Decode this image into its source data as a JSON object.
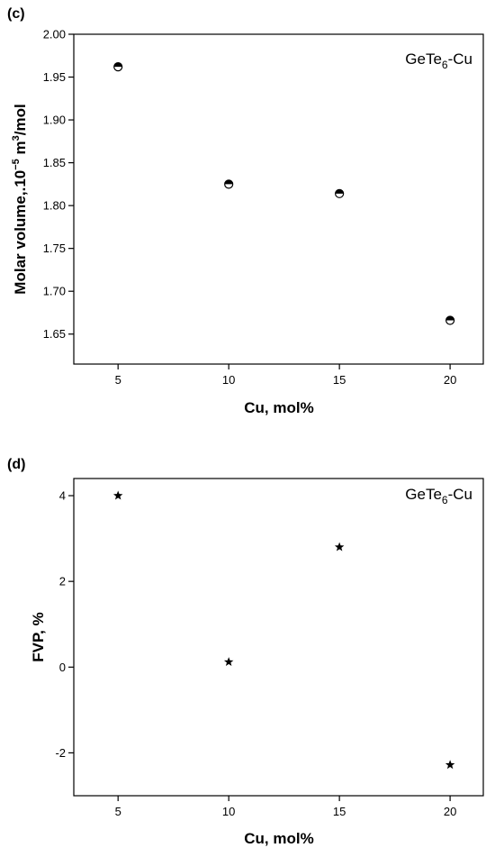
{
  "chart_data": [
    {
      "panel_label": "(c)",
      "type": "scatter",
      "marker": "half-filled-circle",
      "annotation": {
        "main": "GeTe",
        "sub": "6",
        "rest": "-Cu"
      },
      "xlabel": "Cu, mol%",
      "ylabel": {
        "main": "Molar volume,.10",
        "sup1": "−5",
        "mid": " m",
        "sup2": "3",
        "end": "/mol"
      },
      "xlim": [
        3,
        21.5
      ],
      "ylim": [
        1.615,
        2.0
      ],
      "xticks": [
        5,
        10,
        15,
        20
      ],
      "xtick_labels": [
        "5",
        "10",
        "15",
        "20"
      ],
      "yticks": [
        1.65,
        1.7,
        1.75,
        1.8,
        1.85,
        1.9,
        1.95,
        2.0
      ],
      "ytick_labels": [
        "1.65",
        "1.70",
        "1.75",
        "1.80",
        "1.85",
        "1.90",
        "1.95",
        "2.00"
      ],
      "points": [
        {
          "x": 5,
          "y": 1.962
        },
        {
          "x": 10,
          "y": 1.825
        },
        {
          "x": 15,
          "y": 1.814
        },
        {
          "x": 20,
          "y": 1.666
        }
      ]
    },
    {
      "panel_label": "(d)",
      "type": "scatter",
      "marker": "star",
      "annotation": {
        "main": "GeTe",
        "sub": "6",
        "rest": "-Cu"
      },
      "xlabel": "Cu, mol%",
      "ylabel": {
        "main": "FVP, %"
      },
      "xlim": [
        3,
        21.5
      ],
      "ylim": [
        -3,
        4.4
      ],
      "xticks": [
        5,
        10,
        15,
        20
      ],
      "xtick_labels": [
        "5",
        "10",
        "15",
        "20"
      ],
      "yticks": [
        -2,
        0,
        2,
        4
      ],
      "ytick_labels": [
        "-2",
        "0",
        "2",
        "4"
      ],
      "points": [
        {
          "x": 5,
          "y": 4.0
        },
        {
          "x": 10,
          "y": 0.12
        },
        {
          "x": 15,
          "y": 2.8
        },
        {
          "x": 20,
          "y": -2.28
        }
      ]
    }
  ]
}
